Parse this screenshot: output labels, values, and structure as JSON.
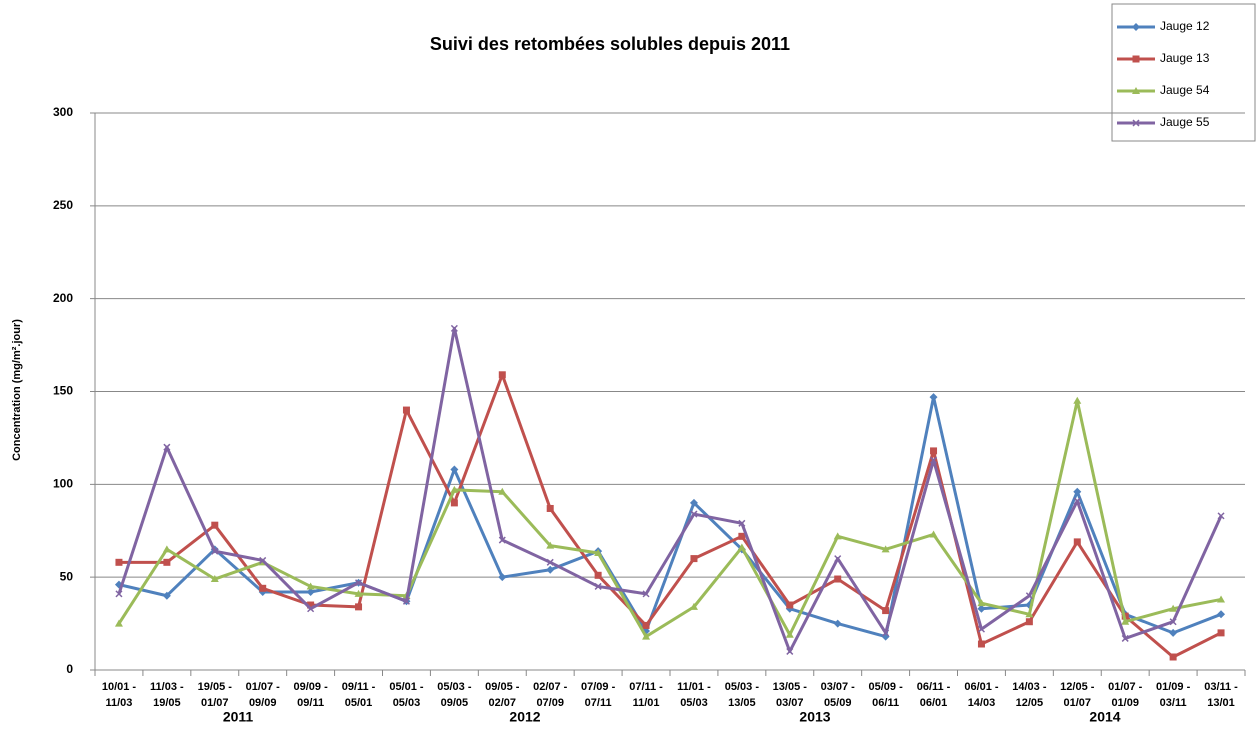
{
  "chart_data": {
    "type": "line",
    "title": "Suivi des retombées solubles depuis 2011",
    "y_label": "Concentration (mg/m².jour)",
    "categories": [
      "10/01 - 11/03",
      "11/03 - 19/05",
      "19/05 - 01/07",
      "01/07 - 09/09",
      "09/09 - 09/11",
      "09/11 - 05/01",
      "05/01 - 05/03",
      "05/03 - 09/05",
      "09/05 - 02/07",
      "02/07 - 07/09",
      "07/09 - 07/11",
      "07/11 - 11/01",
      "11/01 - 05/03",
      "05/03 - 13/05",
      "13/05 - 03/07",
      "03/07 - 05/09",
      "05/09 - 06/11",
      "06/11 - 06/01",
      "06/01 - 14/03",
      "14/03 - 12/05",
      "12/05 - 01/07",
      "01/07 - 01/09",
      "01/09 - 03/11",
      "03/11 - 13/01"
    ],
    "year_labels": [
      "2011",
      "2012",
      "2013",
      "2014"
    ],
    "series": [
      {
        "name": "Jauge 12",
        "color": "#4f81bd",
        "values": [
          46,
          40,
          65,
          42,
          42,
          47,
          37,
          108,
          50,
          54,
          64,
          21,
          90,
          65,
          33,
          25,
          18,
          147,
          33,
          35,
          96,
          30,
          20,
          30
        ]
      },
      {
        "name": "Jauge 13",
        "color": "#c0504d",
        "values": [
          58,
          58,
          78,
          44,
          35,
          34,
          140,
          90,
          159,
          87,
          51,
          24,
          60,
          72,
          35,
          49,
          32,
          118,
          14,
          26,
          69,
          29,
          7,
          20
        ]
      },
      {
        "name": "Jauge 54",
        "color": "#9bbb59",
        "values": [
          25,
          65,
          49,
          58,
          45,
          41,
          40,
          97,
          96,
          67,
          63,
          18,
          34,
          66,
          19,
          72,
          65,
          73,
          36,
          30,
          145,
          26,
          33,
          38
        ]
      },
      {
        "name": "Jauge 55",
        "color": "#8064a2",
        "values": [
          41,
          120,
          64,
          59,
          33,
          47,
          37,
          184,
          70,
          58,
          45,
          41,
          84,
          79,
          10,
          60,
          20,
          113,
          22,
          40,
          91,
          17,
          26,
          83
        ]
      }
    ],
    "ylim": [
      0,
      300
    ],
    "yticks": [
      0,
      50,
      100,
      150,
      200,
      250,
      300
    ],
    "grid": true
  }
}
